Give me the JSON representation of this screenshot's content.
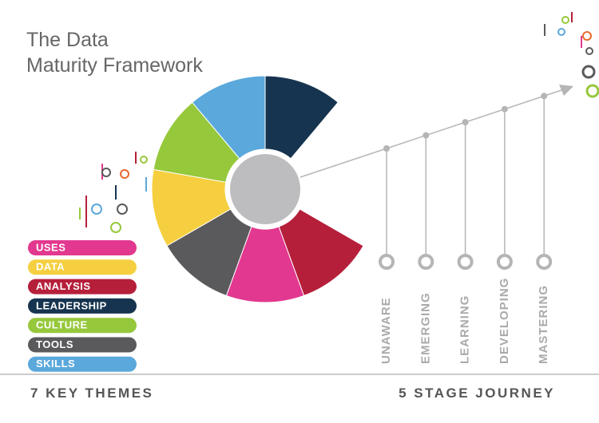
{
  "title": [
    "The Data",
    "Maturity Framework"
  ],
  "themes": [
    {
      "label": "USES",
      "color": "#e2388f"
    },
    {
      "label": "DATA",
      "color": "#f5cf3f"
    },
    {
      "label": "ANALYSIS",
      "color": "#b51f3a"
    },
    {
      "label": "LEADERSHIP",
      "color": "#16344f"
    },
    {
      "label": "CULTURE",
      "color": "#96c83c"
    },
    {
      "label": "TOOLS",
      "color": "#5a5a5c"
    },
    {
      "label": "SKILLS",
      "color": "#5aa8dc"
    }
  ],
  "stages": [
    "UNAWARE",
    "EMERGING",
    "LEARNING",
    "DEVELOPING",
    "MASTERING"
  ],
  "footer": {
    "left": "7 KEY THEMES",
    "right": "5 STAGE JOURNEY"
  }
}
